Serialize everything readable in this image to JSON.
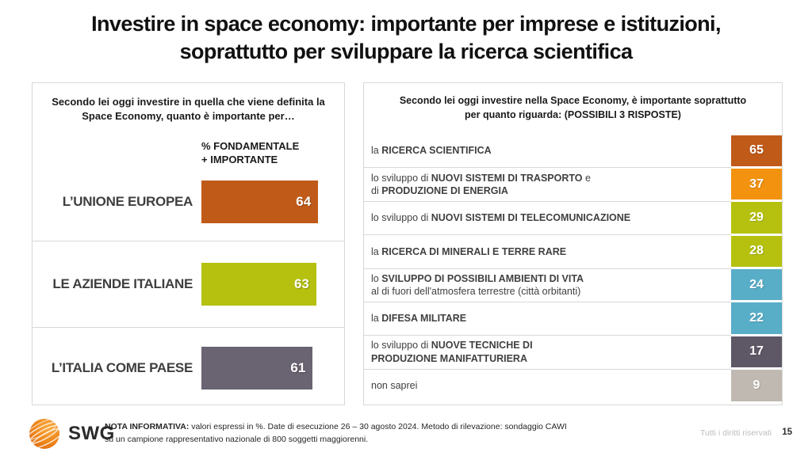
{
  "slide": {
    "title_line1": "Investire in space economy: importante per imprese e istituzioni,",
    "title_line2": "soprattutto per sviluppare la ricerca scientifica",
    "page_number": "15",
    "rights": "Tutti i diritti riservati"
  },
  "left_panel": {
    "question_line1": "Secondo lei oggi investire in quella che viene definita la",
    "question_line2": "Space Economy, quanto è importante per…",
    "measure_line1": "% FONDAMENTALE",
    "measure_line2": "+ IMPORTANTE",
    "bars": [
      {
        "label": "L’UNIONE EUROPEA",
        "value": 64,
        "color": "#C05A18"
      },
      {
        "label": "LE AZIENDE ITALIANE",
        "value": 63,
        "color": "#B5C10E"
      },
      {
        "label": "L’ITALIA COME PAESE",
        "value": 61,
        "color": "#6A6372"
      }
    ]
  },
  "right_panel": {
    "question_line1": "Secondo lei oggi investire nella Space Economy, è importante soprattutto",
    "question_line2": "per quanto riguarda: (POSSIBILI 3 RISPOSTE)",
    "rows": [
      {
        "line1_pre": "la ",
        "line1_bold": "RICERCA SCIENTIFICA",
        "line1_post": "",
        "value": 65,
        "color": "#C05A18"
      },
      {
        "line1_pre": "lo sviluppo di ",
        "line1_bold": "NUOVI SISTEMI DI TRASPORTO",
        "line1_post": " e",
        "line2_pre": "di ",
        "line2_bold": "PRODUZIONE DI ENERGIA",
        "value": 37,
        "color": "#F2920F"
      },
      {
        "line1_pre": "lo sviluppo di ",
        "line1_bold": "NUOVI SISTEMI DI TELECOMUNICAZIONE",
        "line1_post": "",
        "value": 29,
        "color": "#B5C10E"
      },
      {
        "line1_pre": "la ",
        "line1_bold": "RICERCA DI MINERALI E TERRE RARE",
        "line1_post": "",
        "value": 28,
        "color": "#B5C10E"
      },
      {
        "line1_pre": "lo ",
        "line1_bold": "SVILUPPO DI POSSIBILI AMBIENTI DI VITA",
        "line1_post": "",
        "line2_pre": "al di fuori dell'atmosfera terrestre (città orbitanti)",
        "line2_bold": "",
        "value": 24,
        "color": "#58ADC7"
      },
      {
        "line1_pre": "la ",
        "line1_bold": "DIFESA MILITARE",
        "line1_post": "",
        "value": 22,
        "color": "#58ADC7"
      },
      {
        "line1_pre": "lo sviluppo di ",
        "line1_bold": "NUOVE TECNICHE DI",
        "line1_post": "",
        "line2_pre": "",
        "line2_bold": "PRODUZIONE MANIFATTURIERA",
        "value": 17,
        "color": "#5E5765"
      },
      {
        "line1_pre": "non saprei",
        "line1_bold": "",
        "line1_post": "",
        "value": 9,
        "color": "#C0B9B1"
      }
    ]
  },
  "footer": {
    "logo_text": "SWG",
    "note_bold": "NOTA INFORMATIVA:",
    "note_line1": " valori espressi in %. Date di esecuzione 26 – 30 agosto 2024. Metodo di rilevazione: sondaggio CAWI",
    "note_line2": "su un campione rappresentativo nazionale di 800 soggetti maggiorenni."
  },
  "chart_data": [
    {
      "type": "bar",
      "orientation": "horizontal",
      "title": "Secondo lei oggi investire in quella che viene definita la Space Economy, quanto è importante per…",
      "series_label": "% FONDAMENTALE + IMPORTANTE",
      "categories": [
        "L’UNIONE EUROPEA",
        "LE AZIENDE ITALIANE",
        "L’ITALIA COME PAESE"
      ],
      "values": [
        64,
        63,
        61
      ],
      "colors": [
        "#C05A18",
        "#B5C10E",
        "#6A6372"
      ],
      "unit": "%",
      "xlim": [
        0,
        100
      ],
      "grid": false,
      "data_labels": true
    },
    {
      "type": "bar",
      "orientation": "horizontal",
      "title": "Secondo lei oggi investire nella Space Economy, è importante soprattutto per quanto riguarda: (POSSIBILI 3 RISPOSTE)",
      "categories": [
        "la RICERCA SCIENTIFICA",
        "lo sviluppo di NUOVI SISTEMI DI TRASPORTO e di PRODUZIONE DI ENERGIA",
        "lo sviluppo di NUOVI SISTEMI DI TELECOMUNICAZIONE",
        "la RICERCA DI MINERALI E TERRE RARE",
        "lo SVILUPPO DI POSSIBILI AMBIENTI DI VITA al di fuori dell'atmosfera terrestre (città orbitanti)",
        "la DIFESA MILITARE",
        "lo sviluppo di NUOVE TECNICHE DI PRODUZIONE MANIFATTURIERA",
        "non saprei"
      ],
      "values": [
        65,
        37,
        29,
        28,
        24,
        22,
        17,
        9
      ],
      "colors": [
        "#C05A18",
        "#F2920F",
        "#B5C10E",
        "#B5C10E",
        "#58ADC7",
        "#58ADC7",
        "#5E5765",
        "#C0B9B1"
      ],
      "unit": "%",
      "grid": false,
      "data_labels": true
    }
  ]
}
